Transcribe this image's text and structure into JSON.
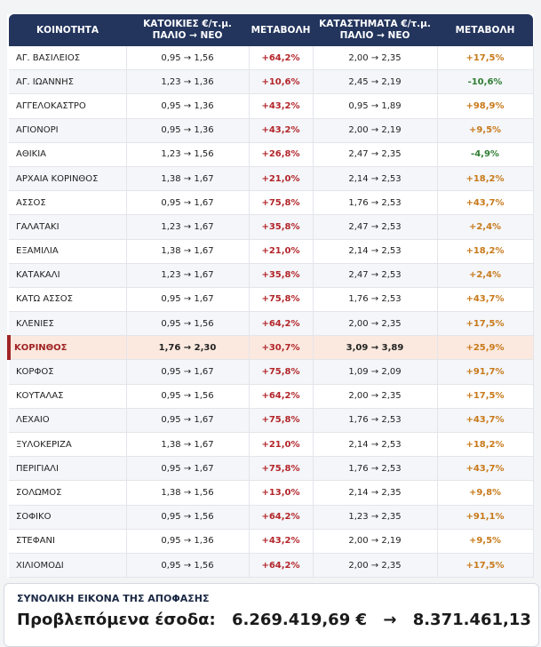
{
  "table": {
    "header": [
      [
        "ΚΟΙΝΟΤΗΤΑ"
      ],
      [
        "ΚΑΤΟΙΚΙΕΣ €/τ.μ.",
        "ΠΑΛΙΟ → ΝΕΟ"
      ],
      [
        "ΜΕΤΑΒΟΛΗ"
      ],
      [
        "ΚΑΤΑΣΤΗΜΑΤΑ €/τ.μ.",
        "ΠΑΛΙΟ → ΝΕΟ"
      ],
      [
        "ΜΕΤΑΒΟΛΗ"
      ]
    ],
    "rows": [
      [
        "ΑΓ. ΒΑΣΙΛΕΙΟΣ",
        "0,95 → 1,56",
        "+64,2%",
        "2,00 → 2,35",
        "+17,5%"
      ],
      [
        "ΑΓ. ΙΩΑΝΝΗΣ",
        "1,23 → 1,36",
        "+10,6%",
        "2,45 → 2,19",
        "-10,6%"
      ],
      [
        "ΑΓΓΕΛΟΚΑΣΤΡΟ",
        "0,95 → 1,36",
        "+43,2%",
        "0,95 → 1,89",
        "+98,9%"
      ],
      [
        "ΑΓΙΟΝΟΡΙ",
        "0,95 → 1,36",
        "+43,2%",
        "2,00 → 2,19",
        "+9,5%"
      ],
      [
        "ΑΘΙΚΙΑ",
        "1,23 → 1,56",
        "+26,8%",
        "2,47 → 2,35",
        "-4,9%"
      ],
      [
        "ΑΡΧΑΙΑ ΚΟΡΙΝΘΟΣ",
        "1,38 → 1,67",
        "+21,0%",
        "2,14 → 2,53",
        "+18,2%"
      ],
      [
        "ΑΣΣΟΣ",
        "0,95 → 1,67",
        "+75,8%",
        "1,76 → 2,53",
        "+43,7%"
      ],
      [
        "ΓΑΛΑΤΑΚΙ",
        "1,23 → 1,67",
        "+35,8%",
        "2,47 → 2,53",
        "+2,4%"
      ],
      [
        "ΕΞΑΜΙΛΙΑ",
        "1,38 → 1,67",
        "+21,0%",
        "2,14 → 2,53",
        "+18,2%"
      ],
      [
        "ΚΑΤΑΚΑΛΙ",
        "1,23 → 1,67",
        "+35,8%",
        "2,47 → 2,53",
        "+2,4%"
      ],
      [
        "ΚΑΤΩ ΑΣΣΟΣ",
        "0,95 → 1,67",
        "+75,8%",
        "1,76 → 2,53",
        "+43,7%"
      ],
      [
        "ΚΛΕΝΙΕΣ",
        "0,95 → 1,56",
        "+64,2%",
        "2,00 → 2,35",
        "+17,5%"
      ],
      [
        "ΚΟΡΙΝΘΟΣ",
        "1,76 → 2,30",
        "+30,7%",
        "3,09 → 3,89",
        "+25,9%"
      ],
      [
        "ΚΟΡΦΟΣ",
        "0,95 → 1,67",
        "+75,8%",
        "1,09 → 2,09",
        "+91,7%"
      ],
      [
        "ΚΟΥΤΑΛΑΣ",
        "0,95 → 1,56",
        "+64,2%",
        "2,00 → 2,35",
        "+17,5%"
      ],
      [
        "ΛΕΧΑΙΟ",
        "0,95 → 1,67",
        "+75,8%",
        "1,76 → 2,53",
        "+43,7%"
      ],
      [
        "ΞΥΛΟΚΕΡΙΖΑ",
        "1,38 → 1,67",
        "+21,0%",
        "2,14 → 2,53",
        "+18,2%"
      ],
      [
        "ΠΕΡΙΓΙΑΛΙ",
        "0,95 → 1,67",
        "+75,8%",
        "1,76 → 2,53",
        "+43,7%"
      ],
      [
        "ΣΟΛΩΜΟΣ",
        "1,38 → 1,56",
        "+13,0%",
        "2,14 → 2,35",
        "+9,8%"
      ],
      [
        "ΣΟΦΙΚΟ",
        "0,95 → 1,56",
        "+64,2%",
        "1,23 → 2,35",
        "+91,1%"
      ],
      [
        "ΣΤΕΦΑΝΙ",
        "0,95 → 1,36",
        "+43,2%",
        "2,00 → 2,19",
        "+9,5%"
      ],
      [
        "ΧΙΛΙΟΜΟΔΙ",
        "0,95 → 1,56",
        "+64,2%",
        "2,00 → 2,35",
        "+17,5%"
      ]
    ]
  },
  "summary": {
    "title": "ΣΥΝΟΛΙΚΗ ΕΙΚΟΝΑ ΤΗΣ ΑΠΟΦΑΣΗΣ",
    "label": "Προβλεπόμενα έσοδα:",
    "old": "6.269.419,69 €",
    "arrow": "→",
    "new": "8.371.461,13"
  }
}
